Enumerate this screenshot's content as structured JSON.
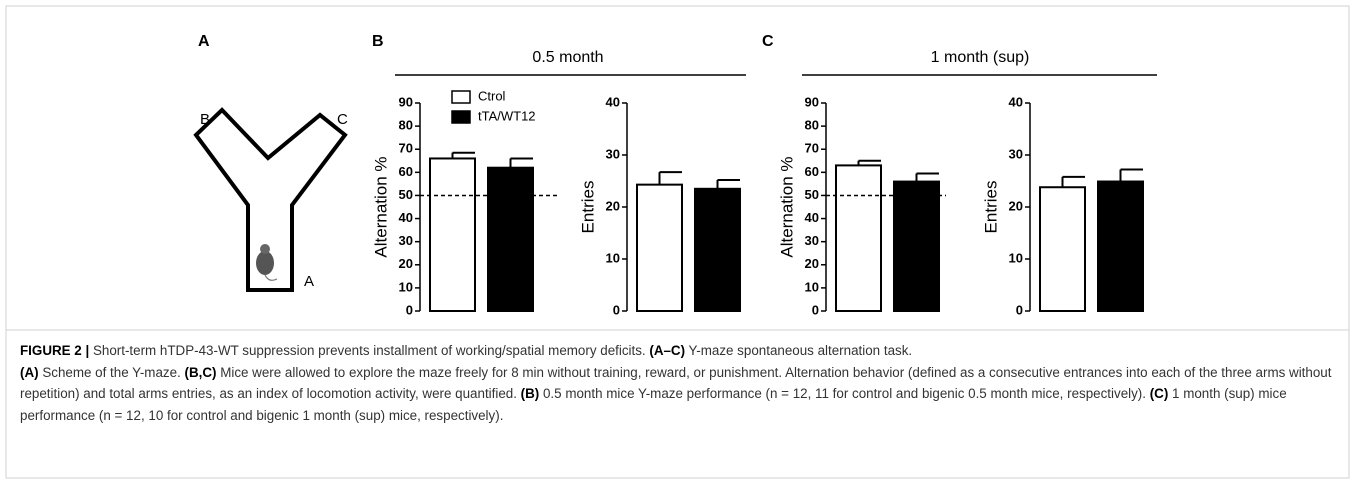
{
  "panels": [
    {
      "label": "A"
    },
    {
      "label": "B"
    },
    {
      "label": "C"
    }
  ],
  "groups": [
    {
      "title": "0.5 month"
    },
    {
      "title": "1 month (sup)"
    }
  ],
  "maze_labels": [
    "B",
    "C",
    "A"
  ],
  "chart_data": [
    {
      "type": "bar",
      "ylabel": "Alternation %",
      "ylim": [
        0,
        90
      ],
      "yticks": [
        0,
        10,
        20,
        30,
        40,
        50,
        60,
        70,
        80,
        90
      ],
      "hline": 50,
      "legend": true,
      "series": [
        {
          "name": "Ctrol",
          "color": "#ffffff",
          "values": [
            66
          ],
          "errors": [
            2.5
          ]
        },
        {
          "name": "tTA/WT12",
          "color": "#000000",
          "values": [
            62
          ],
          "errors": [
            4
          ]
        }
      ]
    },
    {
      "type": "bar",
      "ylabel": "Entries",
      "ylim": [
        0,
        40
      ],
      "yticks": [
        0,
        10,
        20,
        30,
        40
      ],
      "series": [
        {
          "color": "#ffffff",
          "values": [
            24.3
          ],
          "errors": [
            2.4
          ]
        },
        {
          "color": "#000000",
          "values": [
            23.5
          ],
          "errors": [
            1.7
          ]
        }
      ]
    },
    {
      "type": "bar",
      "ylabel": "Alternation %",
      "ylim": [
        0,
        90
      ],
      "yticks": [
        0,
        10,
        20,
        30,
        40,
        50,
        60,
        70,
        80,
        90
      ],
      "hline": 50,
      "series": [
        {
          "color": "#ffffff",
          "values": [
            63
          ],
          "errors": [
            2
          ]
        },
        {
          "color": "#000000",
          "values": [
            56
          ],
          "errors": [
            3.5
          ]
        }
      ]
    },
    {
      "type": "bar",
      "ylabel": "Entries",
      "ylim": [
        0,
        40
      ],
      "yticks": [
        0,
        10,
        20,
        30,
        40
      ],
      "series": [
        {
          "color": "#ffffff",
          "values": [
            23.8
          ],
          "errors": [
            2
          ]
        },
        {
          "color": "#000000",
          "values": [
            24.9
          ],
          "errors": [
            2.3
          ]
        }
      ]
    }
  ],
  "caption": [
    [
      {
        "bold": "FIGURE 2 |"
      },
      {
        "text": " Short-term hTDP-43-WT suppression prevents installment of working/spatial memory deficits. "
      },
      {
        "bold": "(A–C)"
      },
      {
        "text": " Y-maze spontaneous alternation task."
      }
    ],
    [
      {
        "bold": "(A)"
      },
      {
        "text": " Scheme of the Y-maze. "
      },
      {
        "bold": "(B,C)"
      },
      {
        "text": " Mice were allowed to explore the maze freely for 8 min without training, reward, or punishment. Alternation behavior (defined as a consecutive entrances into each of the three arms without repetition) and total arms entries, as an index of locomotion activity, were quantified. "
      },
      {
        "bold": "(B)"
      },
      {
        "text": " 0.5 month mice Y-maze performance (n = 12, 11 for control and bigenic 0.5 month mice, respectively). "
      },
      {
        "bold": "(C)"
      },
      {
        "text": " 1 month (sup) mice performance (n = 12, 10 for control and bigenic 1 month (sup) mice, respectively)."
      }
    ]
  ]
}
